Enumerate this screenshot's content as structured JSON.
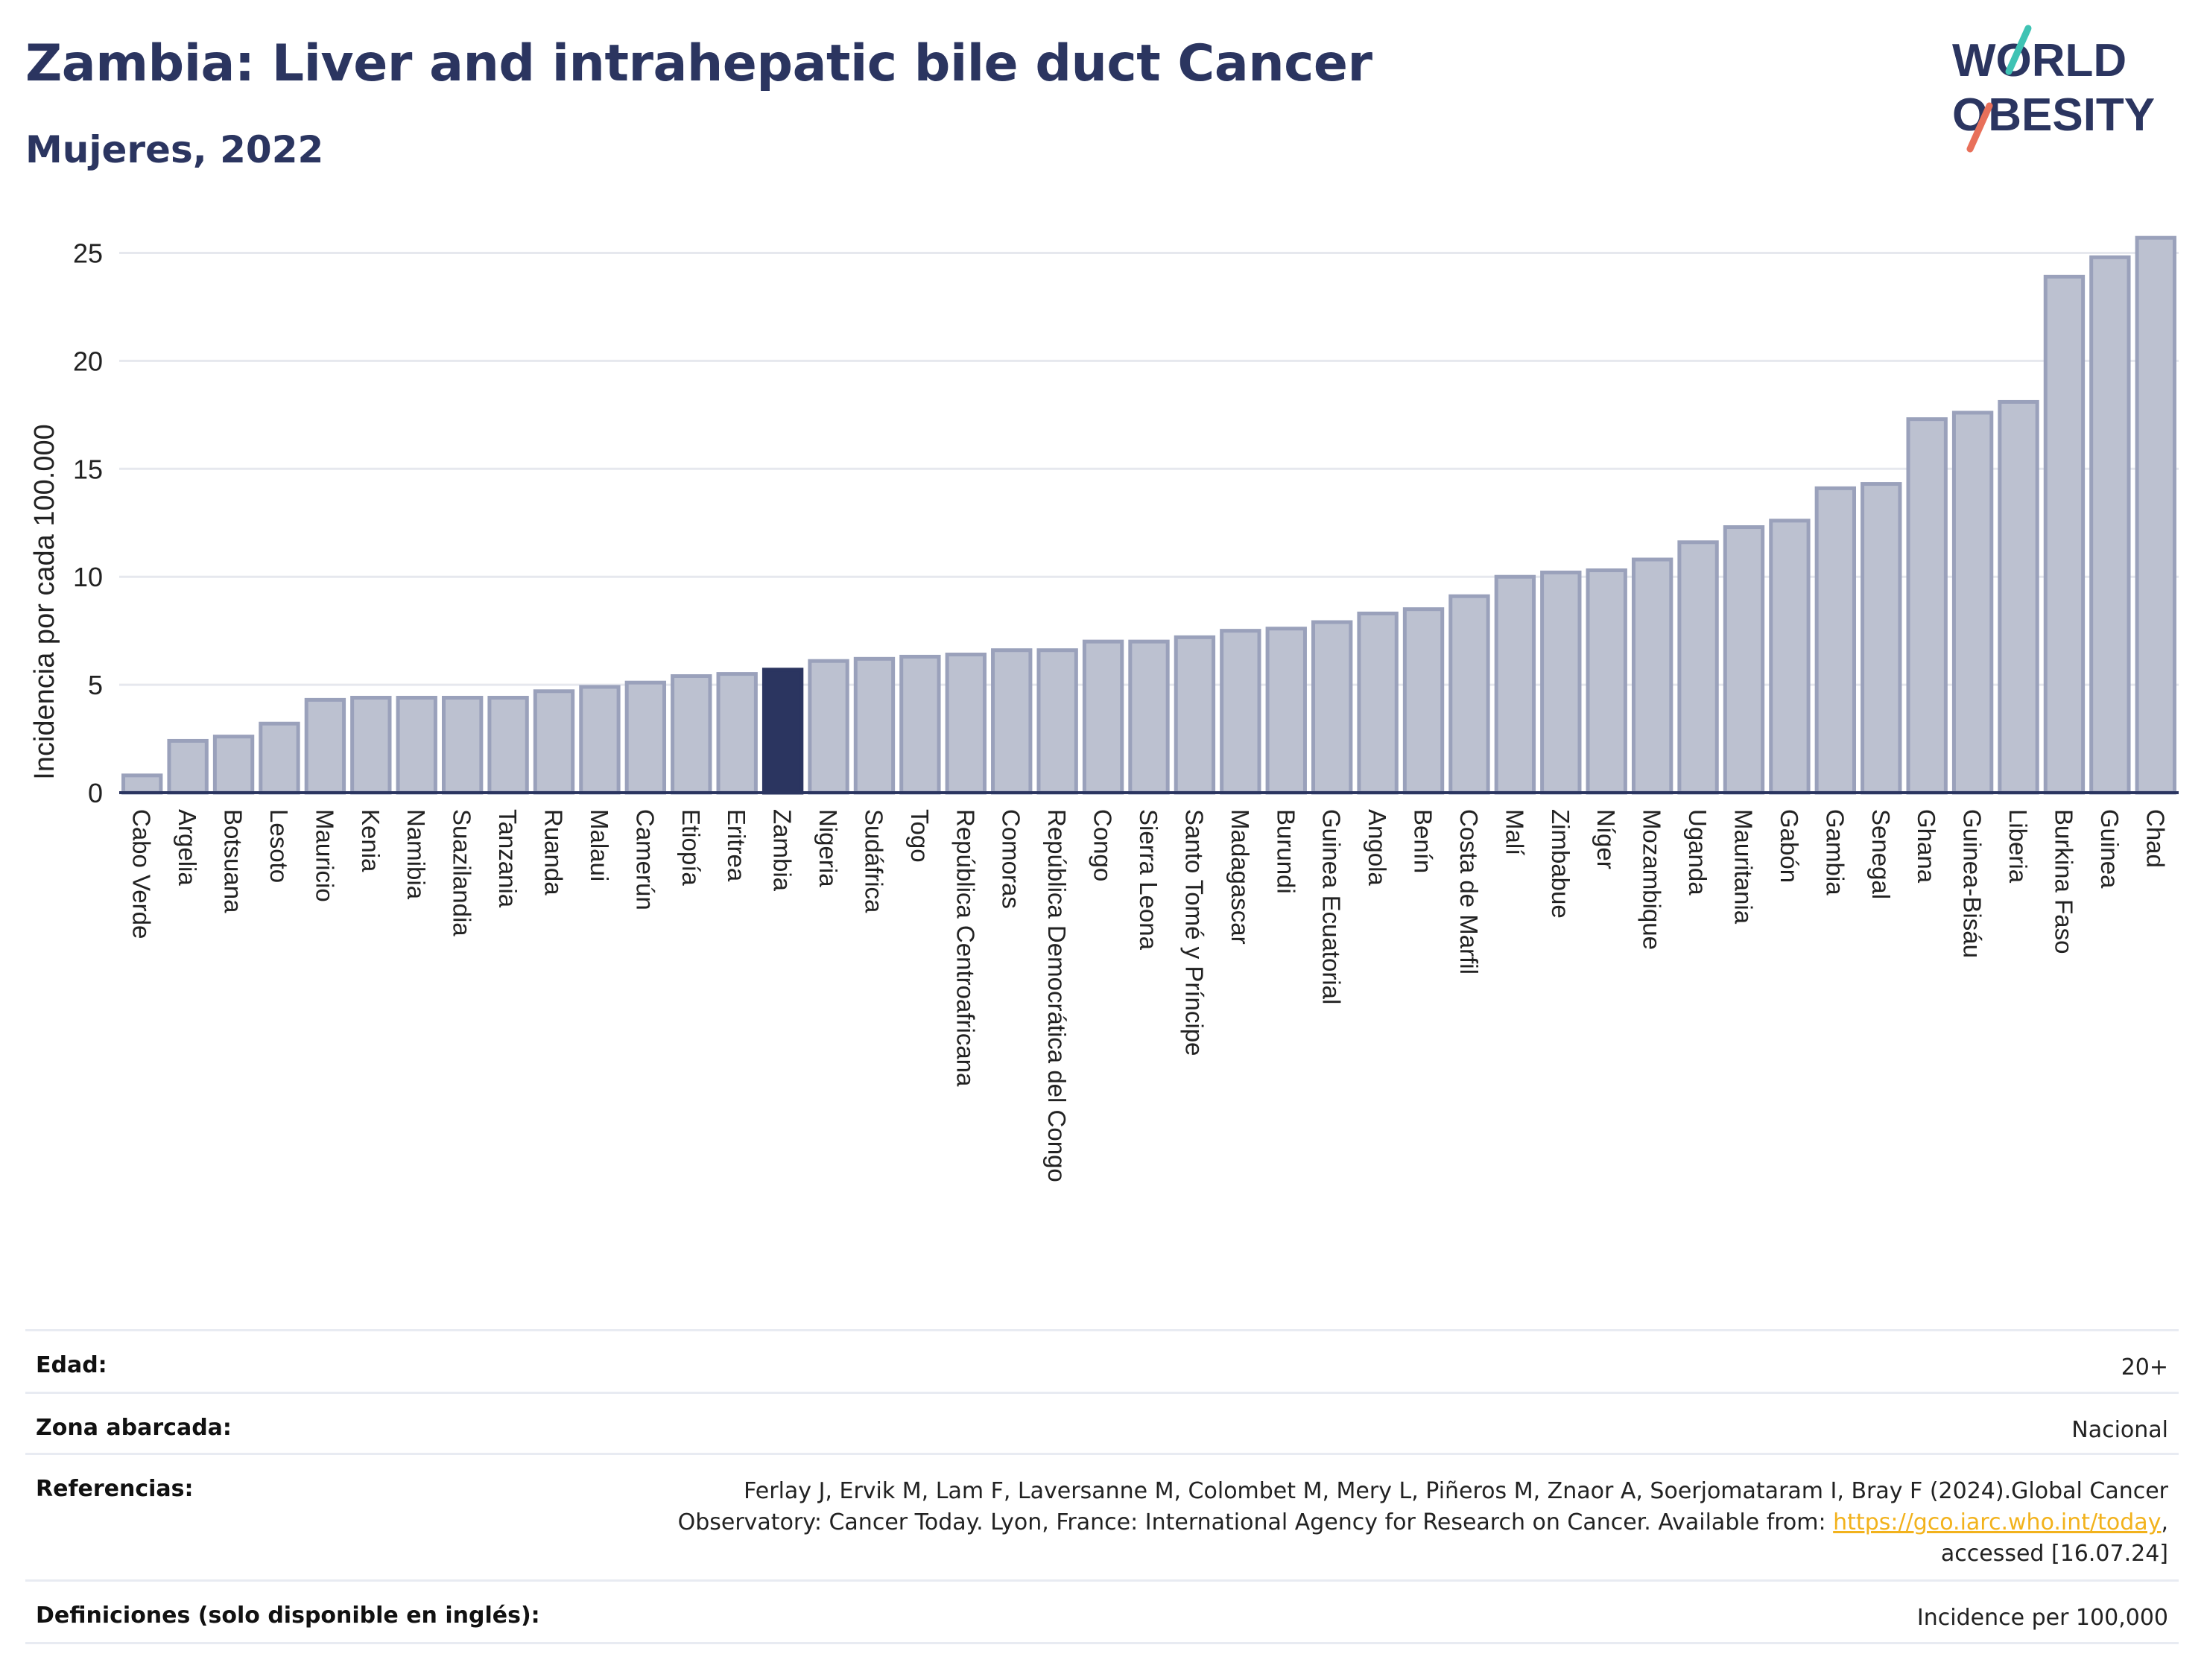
{
  "header": {
    "title": "Zambia: Liver and intrahepatic bile duct Cancer",
    "subtitle": "Mujeres, 2022"
  },
  "logo": {
    "line1": "WORLD",
    "line2": "OBESITY",
    "colors": [
      "#2b3560",
      "#3fc3b4",
      "#e8705a"
    ]
  },
  "colors": {
    "bar": "#bcc1d0",
    "bar_outline": "#9aa1bb",
    "highlight": "#2b3560",
    "grid": "#e6e8ee",
    "axis": "#2b3560"
  },
  "chart_data": {
    "type": "bar",
    "ylabel": "Incidencia por cada 100.000",
    "ylim": [
      0,
      26.5
    ],
    "yticks": [
      0,
      5,
      10,
      15,
      20,
      25
    ],
    "grid": true,
    "highlight": "Zambia",
    "categories": [
      "Cabo Verde",
      "Argelia",
      "Botsuana",
      "Lesoto",
      "Mauricio",
      "Kenia",
      "Namibia",
      "Suazilandia",
      "Tanzania",
      "Ruanda",
      "Malaui",
      "Camerún",
      "Etiopía",
      "Eritrea",
      "Zambia",
      "Nigeria",
      "Sudáfrica",
      "Togo",
      "República Centroafricana",
      "Comoras",
      "República Democrática del Congo",
      "Congo",
      "Sierra Leona",
      "Santo Tomé y Príncipe",
      "Madagascar",
      "Burundi",
      "Guinea Ecuatorial",
      "Angola",
      "Benín",
      "Costa de Marfil",
      "Malí",
      "Zimbabue",
      "Níger",
      "Mozambique",
      "Uganda",
      "Mauritania",
      "Gabón",
      "Gambia",
      "Senegal",
      "Ghana",
      "Guinea-Bisáu",
      "Liberia",
      "Burkina Faso",
      "Guinea",
      "Chad"
    ],
    "values": [
      0.8,
      2.4,
      2.6,
      3.2,
      4.3,
      4.4,
      4.4,
      4.4,
      4.4,
      4.7,
      4.9,
      5.1,
      5.4,
      5.5,
      5.7,
      6.1,
      6.2,
      6.3,
      6.4,
      6.6,
      6.6,
      7.0,
      7.0,
      7.2,
      7.5,
      7.6,
      7.9,
      8.3,
      8.5,
      9.1,
      10.0,
      10.2,
      10.3,
      10.8,
      11.6,
      12.3,
      12.6,
      14.1,
      14.3,
      17.3,
      17.6,
      18.1,
      23.9,
      24.8,
      25.7
    ]
  },
  "info": {
    "rows": [
      {
        "label": "Edad:",
        "value": "20+"
      },
      {
        "label": "Zona abarcada:",
        "value": "Nacional"
      },
      {
        "label": "Referencias:",
        "value_pre": "Ferlay J, Ervik M, Lam F, Laversanne M, Colombet M, Mery L, Piñeros M, Znaor A, Soerjomataram I, Bray F (2024).Global Cancer Observatory: Cancer Today. Lyon, France: International Agency for Research on Cancer. Available from: ",
        "link": "https://gco.iarc.who.int/today",
        "value_post": ", accessed [16.07.24]"
      },
      {
        "label": "Definiciones (solo disponible en inglés):",
        "value": "Incidence per 100,000"
      }
    ]
  }
}
